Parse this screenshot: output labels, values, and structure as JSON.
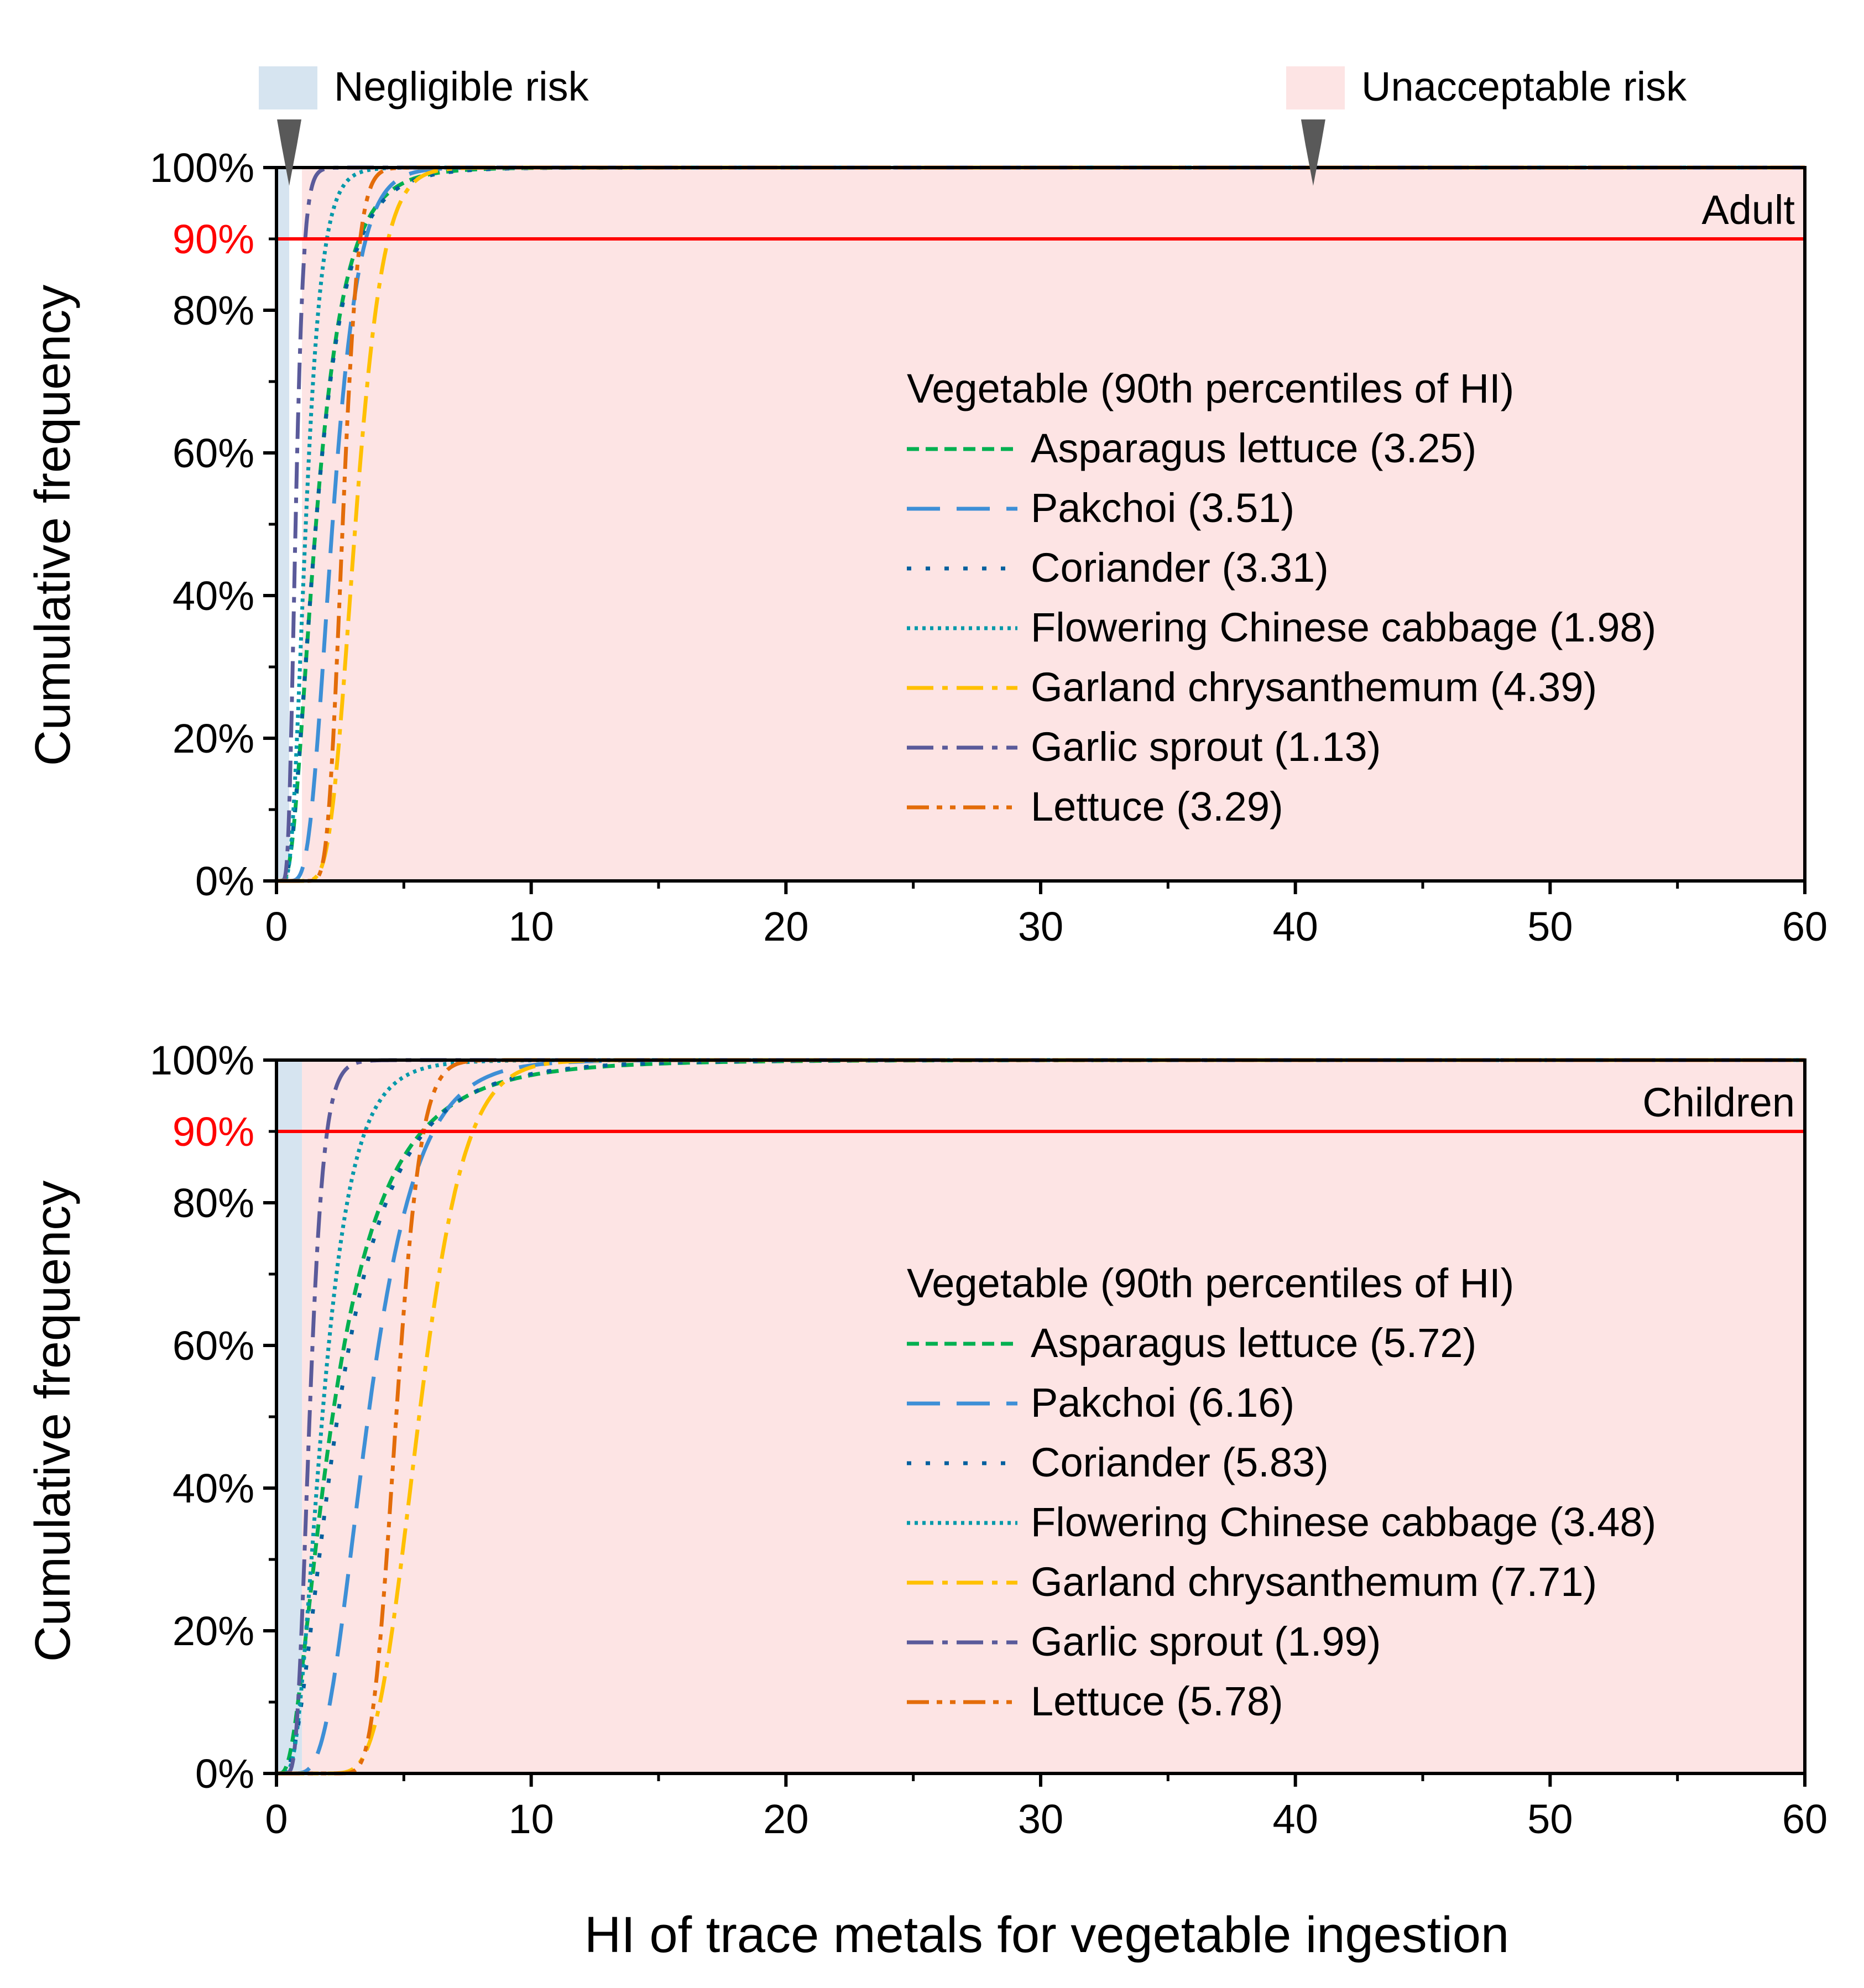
{
  "top_legend": {
    "negligible_label": "Negligible risk",
    "negligible_color": "#d6e4f0",
    "unacceptable_label": "Unacceptable risk",
    "unacceptable_color": "#fde4e4"
  },
  "shared": {
    "xlabel": "HI of trace metals for vegetable ingestion",
    "ylabel": "Cumulative frequency",
    "legend_title": "Vegetable (90th percentiles of HI)",
    "ref_label": "90%",
    "ref_value": 0.9,
    "ref_color": "#ff0000"
  },
  "chart_data": [
    {
      "type": "line",
      "panel_label": "Adult",
      "xlim": [
        0,
        60
      ],
      "ylim": [
        0,
        1
      ],
      "xticks": [
        "0",
        "10",
        "20",
        "30",
        "40",
        "50",
        "60"
      ],
      "yticks": [
        "0%",
        "20%",
        "40%",
        "60%",
        "80%",
        "100%"
      ],
      "negligible_band": [
        0,
        0.5
      ],
      "unacceptable_band": [
        1,
        60
      ],
      "markers_x": [
        0.5,
        40.7
      ],
      "series": [
        {
          "name": "Asparagus lettuce (3.25)",
          "p90": 3.25,
          "median": 1.55,
          "color": "#00b050",
          "dash": "dash"
        },
        {
          "name": "Pakchoi (3.51)",
          "p90": 3.51,
          "median": 2.2,
          "color": "#3d8fd6",
          "dash": "longdash"
        },
        {
          "name": "Coriander (3.31)",
          "p90": 3.31,
          "median": 1.55,
          "color": "#005f9e",
          "dash": "dot"
        },
        {
          "name": "Flowering Chinese cabbage (1.98)",
          "p90": 1.98,
          "median": 1.15,
          "color": "#0099aa",
          "dash": "densedot"
        },
        {
          "name": "Garland chrysanthemum (4.39)",
          "p90": 4.39,
          "median": 3.1,
          "color": "#ffc000",
          "dash": "dashdot"
        },
        {
          "name": "Garlic sprout (1.13)",
          "p90": 1.13,
          "median": 0.75,
          "color": "#5a5a9a",
          "dash": "dashdot"
        },
        {
          "name": "Lettuce (3.29)",
          "p90": 3.29,
          "median": 2.6,
          "color": "#e36c09",
          "dash": "dashdotdot"
        }
      ]
    },
    {
      "type": "line",
      "panel_label": "Children",
      "xlim": [
        0,
        60
      ],
      "ylim": [
        0,
        1
      ],
      "xticks": [
        "0",
        "10",
        "20",
        "30",
        "40",
        "50",
        "60"
      ],
      "yticks": [
        "0%",
        "20%",
        "40%",
        "60%",
        "80%",
        "100%"
      ],
      "negligible_band": [
        0,
        1
      ],
      "unacceptable_band": [
        1,
        60
      ],
      "markers_x": [],
      "series": [
        {
          "name": "Asparagus lettuce (5.72)",
          "p90": 5.72,
          "median": 2.2,
          "color": "#00b050",
          "dash": "dash"
        },
        {
          "name": "Pakchoi (6.16)",
          "p90": 6.16,
          "median": 3.6,
          "color": "#3d8fd6",
          "dash": "longdash"
        },
        {
          "name": "Coriander (5.83)",
          "p90": 5.83,
          "median": 2.4,
          "color": "#005f9e",
          "dash": "dot"
        },
        {
          "name": "Flowering Chinese cabbage (3.48)",
          "p90": 3.48,
          "median": 1.8,
          "color": "#0099aa",
          "dash": "densedot"
        },
        {
          "name": "Garland chrysanthemum (7.71)",
          "p90": 7.71,
          "median": 5.6,
          "color": "#ffc000",
          "dash": "dashdot"
        },
        {
          "name": "Garlic sprout (1.99)",
          "p90": 1.99,
          "median": 1.3,
          "color": "#5a5a9a",
          "dash": "dashdot"
        },
        {
          "name": "Lettuce (5.78)",
          "p90": 5.78,
          "median": 4.7,
          "color": "#e36c09",
          "dash": "dashdotdot"
        }
      ]
    }
  ]
}
